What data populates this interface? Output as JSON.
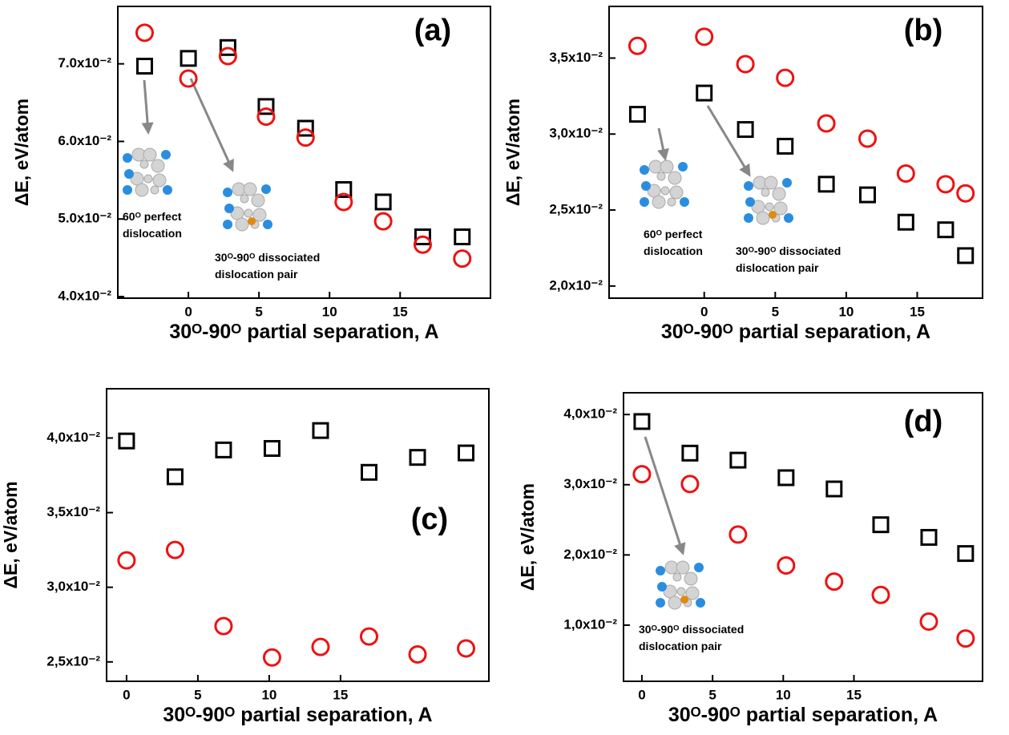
{
  "chart_data": [
    {
      "type": "scatter",
      "panel_label": "(a)",
      "ylabel": "ΔE, eV/atom",
      "xlabel": "30ᴼ-90ᴼ partial separation, A",
      "xlim": [
        -5,
        21.4
      ],
      "ylim": [
        0.0398,
        0.0774
      ],
      "xticks": [
        0,
        5,
        10,
        15
      ],
      "yticks": [
        {
          "value": 0.04,
          "label": "4.0x10⁻²"
        },
        {
          "value": 0.05,
          "label": "5.0x10⁻²"
        },
        {
          "value": 0.06,
          "label": "6.0x10⁻²"
        },
        {
          "value": 0.07,
          "label": "7.0x10⁻²"
        }
      ],
      "x": [
        -3.1,
        0,
        2.8,
        5.5,
        8.3,
        11.0,
        13.8,
        16.6,
        19.4
      ],
      "series": [
        {
          "marker": "square",
          "color": "#000000",
          "values": [
            0.0697,
            0.0707,
            0.0721,
            0.0645,
            0.0617,
            0.0538,
            0.0522,
            0.0477,
            0.0477
          ]
        },
        {
          "marker": "circle",
          "color": "#ee1111",
          "values": [
            0.074,
            0.0681,
            0.071,
            0.0632,
            0.0605,
            0.0522,
            0.0497,
            0.0467,
            0.0449
          ]
        }
      ],
      "annotations": [
        {
          "lines": [
            "60ᴼ perfect",
            "dislocation"
          ]
        },
        {
          "lines": [
            "30ᴼ-90ᴼ dissociated",
            "dislocation pair"
          ]
        }
      ]
    },
    {
      "type": "scatter",
      "panel_label": "(b)",
      "ylabel": "ΔE, eV/atom",
      "xlabel": "30ᴼ-90ᴼ partial separation, A",
      "xlim": [
        -6.7,
        19.6
      ],
      "ylim": [
        0.0192,
        0.0384
      ],
      "xticks": [
        0,
        5,
        10,
        15
      ],
      "yticks": [
        {
          "value": 0.02,
          "label": "2,0x10⁻²"
        },
        {
          "value": 0.025,
          "label": "2,5x10⁻²"
        },
        {
          "value": 0.03,
          "label": "3,0x10⁻²"
        },
        {
          "value": 0.035,
          "label": "3,5x10⁻²"
        }
      ],
      "x": [
        -4.7,
        0,
        2.9,
        5.7,
        8.6,
        11.5,
        14.2,
        17.0,
        18.4
      ],
      "series": [
        {
          "marker": "square",
          "color": "#000000",
          "values": [
            0.0313,
            0.0327,
            0.0303,
            0.0292,
            0.0267,
            0.026,
            0.0242,
            0.0237,
            0.022
          ]
        },
        {
          "marker": "circle",
          "color": "#ee1111",
          "values": [
            0.0358,
            0.0364,
            0.0346,
            0.0337,
            0.0307,
            0.0297,
            0.0274,
            0.0267,
            0.0261
          ]
        }
      ],
      "annotations": [
        {
          "lines": [
            "60ᴼ perfect",
            "dislocation"
          ]
        },
        {
          "lines": [
            "30ᴼ-90ᴼ dissociated",
            "dislocation pair"
          ]
        }
      ]
    },
    {
      "type": "scatter",
      "panel_label": "(c)",
      "ylabel": "ΔE, eV/atom",
      "xlabel": "30ᴼ-90ᴼ partial separation, A",
      "xlim": [
        -1.4,
        25.4
      ],
      "ylim": [
        0.0237,
        0.0433
      ],
      "xticks": [
        0,
        5,
        10,
        15
      ],
      "yticks": [
        {
          "value": 0.025,
          "label": "2,5x10⁻²"
        },
        {
          "value": 0.03,
          "label": "3,0x10⁻²"
        },
        {
          "value": 0.035,
          "label": "3,5x10⁻²"
        },
        {
          "value": 0.04,
          "label": "4,0x10⁻²"
        }
      ],
      "x": [
        0,
        3.4,
        6.8,
        10.2,
        13.6,
        17.0,
        20.4,
        23.8
      ],
      "series": [
        {
          "marker": "square",
          "color": "#000000",
          "values": [
            0.0398,
            0.0374,
            0.0392,
            0.0393,
            0.0405,
            0.0377,
            0.0387,
            0.039
          ]
        },
        {
          "marker": "circle",
          "color": "#ee1111",
          "values": [
            0.0318,
            0.0325,
            0.0274,
            0.0253,
            0.026,
            0.0267,
            0.0255,
            0.0259
          ]
        }
      ],
      "annotations": []
    },
    {
      "type": "scatter",
      "panel_label": "(d)",
      "ylabel": "ΔE, eV/atom",
      "xlabel": "30ᴼ-90ᴼ partial separation, A",
      "xlim": [
        -1.3,
        24.1
      ],
      "ylim": [
        0.002,
        0.0431
      ],
      "xticks": [
        0,
        5,
        10,
        15
      ],
      "yticks": [
        {
          "value": 0.01,
          "label": "1,0x10⁻²"
        },
        {
          "value": 0.02,
          "label": "2,0x10⁻²"
        },
        {
          "value": 0.03,
          "label": "3,0x10⁻²"
        },
        {
          "value": 0.04,
          "label": "4,0x10⁻²"
        }
      ],
      "x": [
        0,
        3.4,
        6.8,
        10.2,
        13.6,
        16.9,
        20.3,
        22.9
      ],
      "series": [
        {
          "marker": "square",
          "color": "#000000",
          "values": [
            0.039,
            0.0345,
            0.0335,
            0.031,
            0.0294,
            0.0243,
            0.0225,
            0.0202
          ]
        },
        {
          "marker": "circle",
          "color": "#ee1111",
          "values": [
            0.0315,
            0.0301,
            0.0229,
            0.0185,
            0.0162,
            0.0143,
            0.0105,
            0.0081
          ]
        }
      ],
      "annotations": [
        {
          "lines": [
            "30ᴼ-90ᴼ dissociated",
            "dislocation pair"
          ]
        }
      ]
    }
  ]
}
